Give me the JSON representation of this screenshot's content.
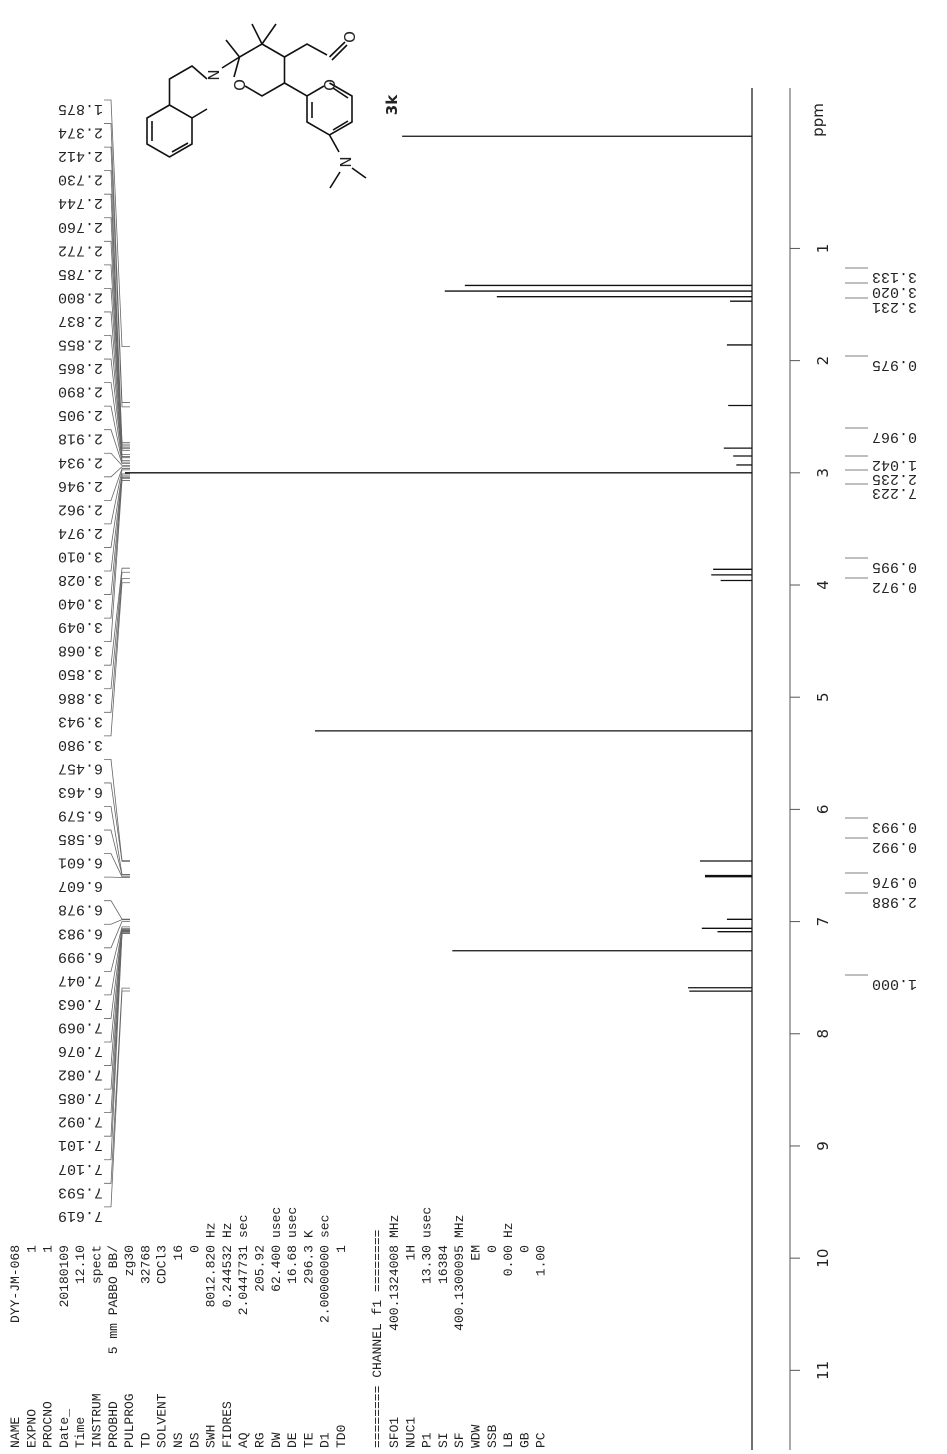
{
  "chart_data": {
    "type": "nmr",
    "xlabel": "ppm",
    "x": [
      0.0,
      1.33,
      1.38,
      1.43,
      1.47,
      1.86,
      2.4,
      2.78,
      2.85,
      2.93,
      3.0,
      3.86,
      3.91,
      3.96,
      5.3,
      6.46,
      6.59,
      6.6,
      6.98,
      7.06,
      7.09,
      7.26,
      7.59,
      7.62
    ],
    "values": [
      55.8,
      45.8,
      49.0,
      40.7,
      3.5,
      4.0,
      3.8,
      4.5,
      3.0,
      2.5,
      100,
      6.2,
      6.5,
      5.0,
      69.7,
      8.3,
      7.5,
      7.5,
      4.0,
      8.0,
      5.5,
      47.8,
      10.2,
      10.0
    ],
    "xlim": [
      -0.43,
      11.71
    ],
    "xticks": [
      1,
      2,
      3,
      4,
      5,
      6,
      7,
      8,
      9,
      10,
      11
    ],
    "peak_list": [
      1.875,
      2.374,
      2.412,
      {
        "value": 2.73,
        "label": "2.730"
      },
      2.744,
      {
        "value": 2.76,
        "label": "2.760"
      },
      2.772,
      2.785,
      {
        "value": 2.8,
        "label": "2.800"
      },
      2.837,
      2.855,
      2.865,
      {
        "value": 2.89,
        "label": "2.890"
      },
      2.905,
      2.918,
      2.934,
      2.946,
      2.962,
      2.974,
      {
        "value": 3.01,
        "label": "3.010"
      },
      3.028,
      {
        "value": 3.04,
        "label": "3.040"
      },
      3.049,
      3.068,
      {
        "value": 3.85,
        "label": "3.850"
      },
      3.886,
      3.943,
      {
        "value": 3.98,
        "label": "3.980"
      },
      6.457,
      6.463,
      6.579,
      6.585,
      6.601,
      6.607,
      6.978,
      6.983,
      6.999,
      7.047,
      7.063,
      7.069,
      7.076,
      7.082,
      7.085,
      7.092,
      7.101,
      7.107,
      7.593,
      7.619
    ],
    "integrals": [
      3.133,
      {
        "value": 3.02,
        "label": "3.020"
      },
      3.231,
      0.975,
      0.967,
      1.042,
      2.235,
      7.223,
      0.995,
      0.972,
      0.993,
      0.992,
      0.976,
      2.988,
      {
        "value": 1,
        "label": "1.000"
      }
    ]
  },
  "structure": {
    "compound_label": "3k",
    "atom_labels": [
      "N",
      "O",
      "O",
      "O",
      "N"
    ]
  },
  "parameters": [
    {
      "name": "NAME",
      "value": "DYY-JM-068"
    },
    {
      "name": "EXPNO",
      "value": "1"
    },
    {
      "name": "PROCNO",
      "value": "1"
    },
    {
      "name": "Date_",
      "value": "20180109"
    },
    {
      "name": "Time",
      "value": "12.10"
    },
    {
      "name": "INSTRUM",
      "value": "spect"
    },
    {
      "name": "PROBHD",
      "value": "5 mm PABBO BB/"
    },
    {
      "name": "PULPROG",
      "value": "zg30"
    },
    {
      "name": "TD",
      "value": "32768"
    },
    {
      "name": "SOLVENT",
      "value": "CDCl3"
    },
    {
      "name": "NS",
      "value": "16"
    },
    {
      "name": "DS",
      "value": "0"
    },
    {
      "name": "SWH",
      "value": "8012.820",
      "unit": "Hz"
    },
    {
      "name": "FIDRES",
      "value": "0.244532",
      "unit": "Hz"
    },
    {
      "name": "AQ",
      "value": "2.0447731",
      "unit": "sec"
    },
    {
      "name": "RG",
      "value": "205.92"
    },
    {
      "name": "DW",
      "value": "62.400",
      "unit": "usec"
    },
    {
      "name": "DE",
      "value": "16.68",
      "unit": "usec"
    },
    {
      "name": "TE",
      "value": "296.3",
      "unit": "K"
    },
    {
      "name": "D1",
      "value": "2.00000000",
      "unit": "sec"
    },
    {
      "name": "TD0",
      "value": "1"
    }
  ],
  "channel": {
    "title": "======== CHANNEL f1 ========",
    "parameters": [
      {
        "name": "SFO1",
        "value": "400.1324008",
        "unit": "MHz"
      },
      {
        "name": "NUC1",
        "value": "1H"
      },
      {
        "name": "P1",
        "value": "13.30",
        "unit": "usec"
      },
      {
        "name": "SI",
        "value": "16384"
      },
      {
        "name": "SF",
        "value": "400.1300095",
        "unit": "MHz"
      },
      {
        "name": "WDW",
        "value": "EM"
      },
      {
        "name": "SSB",
        "value": "0"
      },
      {
        "name": "LB",
        "value": "0.00",
        "unit": "Hz"
      },
      {
        "name": "GB",
        "value": "0"
      },
      {
        "name": "PC",
        "value": "1.00"
      }
    ]
  }
}
